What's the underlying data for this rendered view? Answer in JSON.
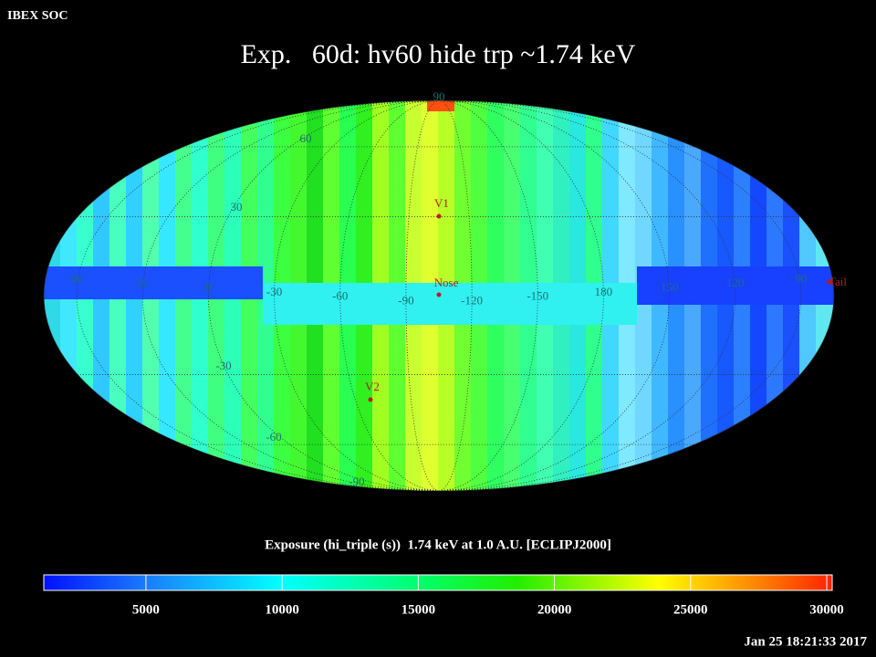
{
  "header": {
    "title": "IBEX SOC"
  },
  "chart_data": {
    "type": "map",
    "title": "Exp.   60d: hv60 hide trp ~1.74 keV",
    "latitude_labels": [
      90,
      60,
      30,
      -30,
      -60,
      -90
    ],
    "longitude_labels": [
      60,
      30,
      0,
      -30,
      -60,
      -90,
      -120,
      -150,
      180,
      150,
      120,
      90
    ],
    "markers": [
      "V1",
      "Nose",
      "V2",
      "Tail"
    ],
    "colorbar": {
      "label": "Exposure (hi_triple (s))  1.74 keV at 1.0 A.U. [ECLIPJ2000]",
      "lim": [
        1250,
        30200
      ],
      "ticks": [
        5000,
        10000,
        15000,
        20000,
        25000,
        30000
      ]
    }
  },
  "footer": {
    "timestamp": "Jan 25 18:21:33 2017"
  }
}
